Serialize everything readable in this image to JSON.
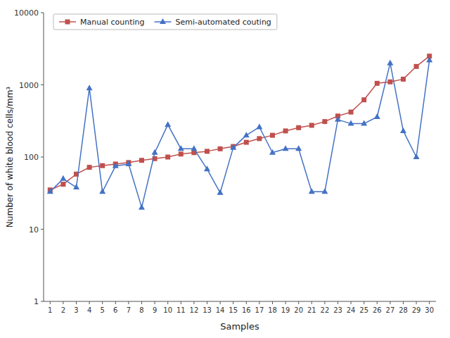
{
  "chart_data": {
    "type": "line",
    "x_label": "Samples",
    "y_label": "Number of white blood cells/mm³",
    "x": [
      1,
      2,
      3,
      4,
      5,
      6,
      7,
      8,
      9,
      10,
      11,
      12,
      13,
      14,
      15,
      16,
      17,
      18,
      19,
      20,
      21,
      22,
      23,
      24,
      25,
      26,
      27,
      28,
      29,
      30
    ],
    "series": [
      {
        "name": "Manual counting",
        "color": "#c0504d",
        "marker": "square",
        "values": [
          35,
          42,
          58,
          72,
          76,
          80,
          84,
          90,
          95,
          100,
          110,
          115,
          120,
          130,
          140,
          160,
          180,
          200,
          230,
          255,
          275,
          310,
          370,
          420,
          620,
          1050,
          1100,
          1200,
          1800,
          2500
        ]
      },
      {
        "name": "Semi-automated couting",
        "color": "#4472c4",
        "marker": "triangle",
        "values": [
          33,
          50,
          38,
          900,
          33,
          75,
          80,
          20,
          115,
          280,
          130,
          130,
          68,
          32,
          135,
          200,
          260,
          115,
          130,
          130,
          33,
          33,
          330,
          290,
          290,
          360,
          2000,
          230,
          100,
          2200
        ]
      }
    ],
    "xlim": [
      0.5,
      30.5
    ],
    "xticks": [
      1,
      2,
      3,
      4,
      5,
      6,
      7,
      8,
      9,
      10,
      11,
      12,
      13,
      14,
      15,
      16,
      17,
      18,
      19,
      20,
      21,
      22,
      23,
      24,
      25,
      26,
      27,
      28,
      29,
      30
    ],
    "ylim": [
      1,
      10000
    ],
    "yticks": [
      1,
      10,
      100,
      1000,
      10000
    ],
    "log": "y",
    "grid": false,
    "legend": "upper left"
  }
}
